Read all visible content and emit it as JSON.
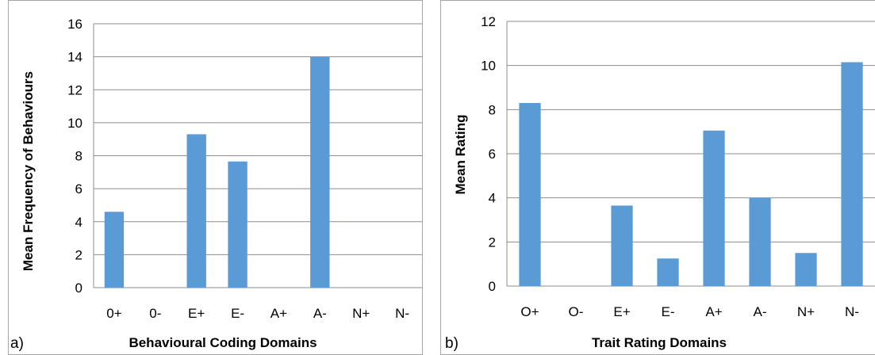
{
  "chart_data": [
    {
      "type": "bar",
      "panel_label": "a)",
      "categories": [
        "0+",
        "0-",
        "E+",
        "E-",
        "A+",
        "A-",
        "N+",
        "N-"
      ],
      "values": [
        4.6,
        0,
        9.3,
        7.65,
        0,
        14.0,
        0,
        0
      ],
      "xlabel": "Behavioural Coding Domains",
      "ylabel": "Mean Frequency of Behaviours",
      "ylim": [
        0,
        16
      ],
      "yticks": [
        "0",
        "2",
        "4",
        "6",
        "8",
        "10",
        "12",
        "14",
        "16"
      ],
      "grid": true,
      "bar_color": "#5b9bd5"
    },
    {
      "type": "bar",
      "panel_label": "b)",
      "categories": [
        "O+",
        "O-",
        "E+",
        "E-",
        "A+",
        "A-",
        "N+",
        "N-"
      ],
      "values": [
        8.3,
        0,
        3.65,
        1.25,
        7.05,
        4.0,
        1.5,
        10.15
      ],
      "xlabel": "Trait Rating Domains",
      "ylabel": "Mean Rating",
      "ylim": [
        0,
        12
      ],
      "yticks": [
        "0",
        "2",
        "4",
        "6",
        "8",
        "10",
        "12"
      ],
      "grid": true,
      "bar_color": "#5b9bd5"
    }
  ]
}
